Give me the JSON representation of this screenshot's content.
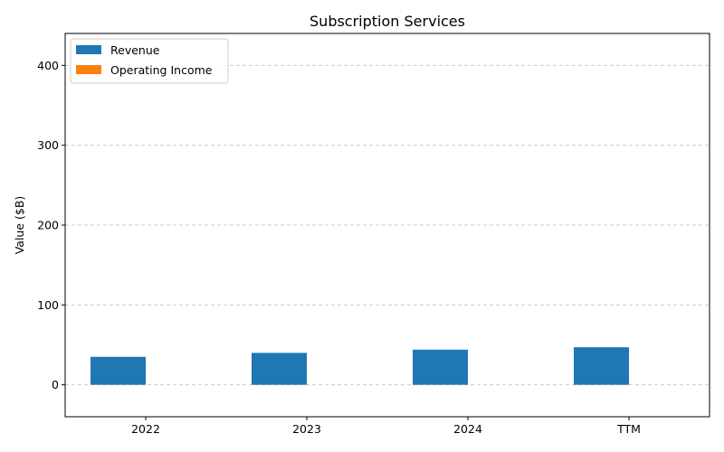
{
  "chart_data": {
    "type": "bar",
    "title": "Subscription Services",
    "xlabel": "",
    "ylabel": "Value ($B)",
    "categories": [
      "2022",
      "2023",
      "2024",
      "TTM"
    ],
    "series": [
      {
        "name": "Revenue",
        "values": [
          35,
          40,
          44,
          47
        ],
        "color": "#1f77b4"
      },
      {
        "name": "Operating Income",
        "values": [
          0,
          0,
          0,
          0
        ],
        "color": "#ff7f0e"
      }
    ],
    "ylim": [
      -40,
      440
    ],
    "yticks": [
      0,
      100,
      200,
      300,
      400
    ],
    "grid": true,
    "legend": "top-left"
  }
}
